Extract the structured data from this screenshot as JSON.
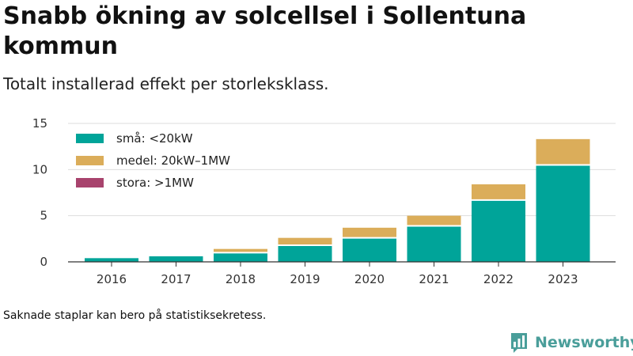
{
  "header": {
    "title": "Snabb ökning av solcellsel i Sollentuna kommun",
    "subtitle": "Totalt installerad effekt per storleksklass."
  },
  "footer": {
    "note": "Saknade staplar kan bero på statistiksekretess.",
    "brand": "Newsworthy",
    "brand_icon": "bar-chart-speech-bubble-icon",
    "brand_color": "#4a9e9a"
  },
  "chart_data": {
    "type": "bar",
    "stacked": true,
    "title": "Snabb ökning av solcellsel i Sollentuna kommun",
    "subtitle": "Totalt installerad effekt per storleksklass.",
    "categories": [
      "2016",
      "2017",
      "2018",
      "2019",
      "2020",
      "2021",
      "2022",
      "2023"
    ],
    "series": [
      {
        "name": "små: <20kW",
        "color": "#00a499",
        "values": [
          0.4,
          0.6,
          1.0,
          1.8,
          2.6,
          3.9,
          6.7,
          10.5
        ]
      },
      {
        "name": "medel: 20kW–1MW",
        "color": "#dbad5a",
        "values": [
          0,
          0,
          0.4,
          0.8,
          1.1,
          1.1,
          1.7,
          2.8
        ]
      },
      {
        "name": "stora: >1MW",
        "color": "#a8436d",
        "values": [
          0,
          0,
          0,
          0,
          0,
          0,
          0,
          0
        ]
      }
    ],
    "ylim": [
      0,
      15
    ],
    "yticks": [
      0,
      5,
      10,
      15
    ],
    "xlabel": "",
    "ylabel": "",
    "grid": true,
    "legend": "top-left"
  }
}
